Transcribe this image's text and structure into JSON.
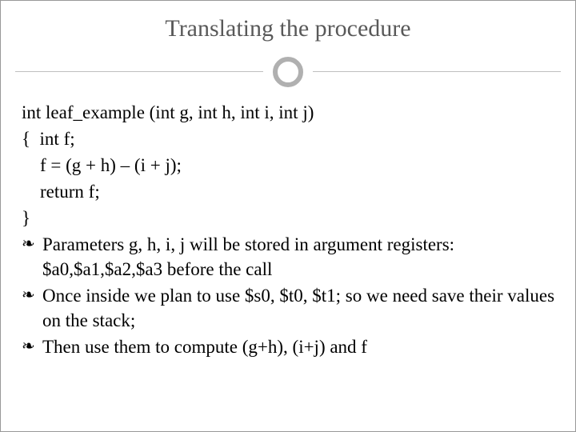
{
  "slide": {
    "title": "Translating the procedure",
    "title_color": "#595959",
    "title_fontsize": 30,
    "divider_color": "#bfbfbf",
    "circle_border_color": "#b0b0b0",
    "body_fontsize": 23,
    "body_color": "#000000",
    "code_lines": [
      "int leaf_example (int g, int h, int i, int j)",
      "{  int f;",
      "    f = (g + h) – (i + j);",
      "    return f;",
      "}"
    ],
    "bullets": [
      "Parameters g, h, i, j will be stored in argument registers: $a0,$a1,$a2,$a3 before the call",
      "Once inside we plan to use $s0, $t0, $t1; so we need save their values on the stack;",
      "Then use them to compute (g+h), (i+j) and f"
    ],
    "bullet_glyph": "❧"
  }
}
